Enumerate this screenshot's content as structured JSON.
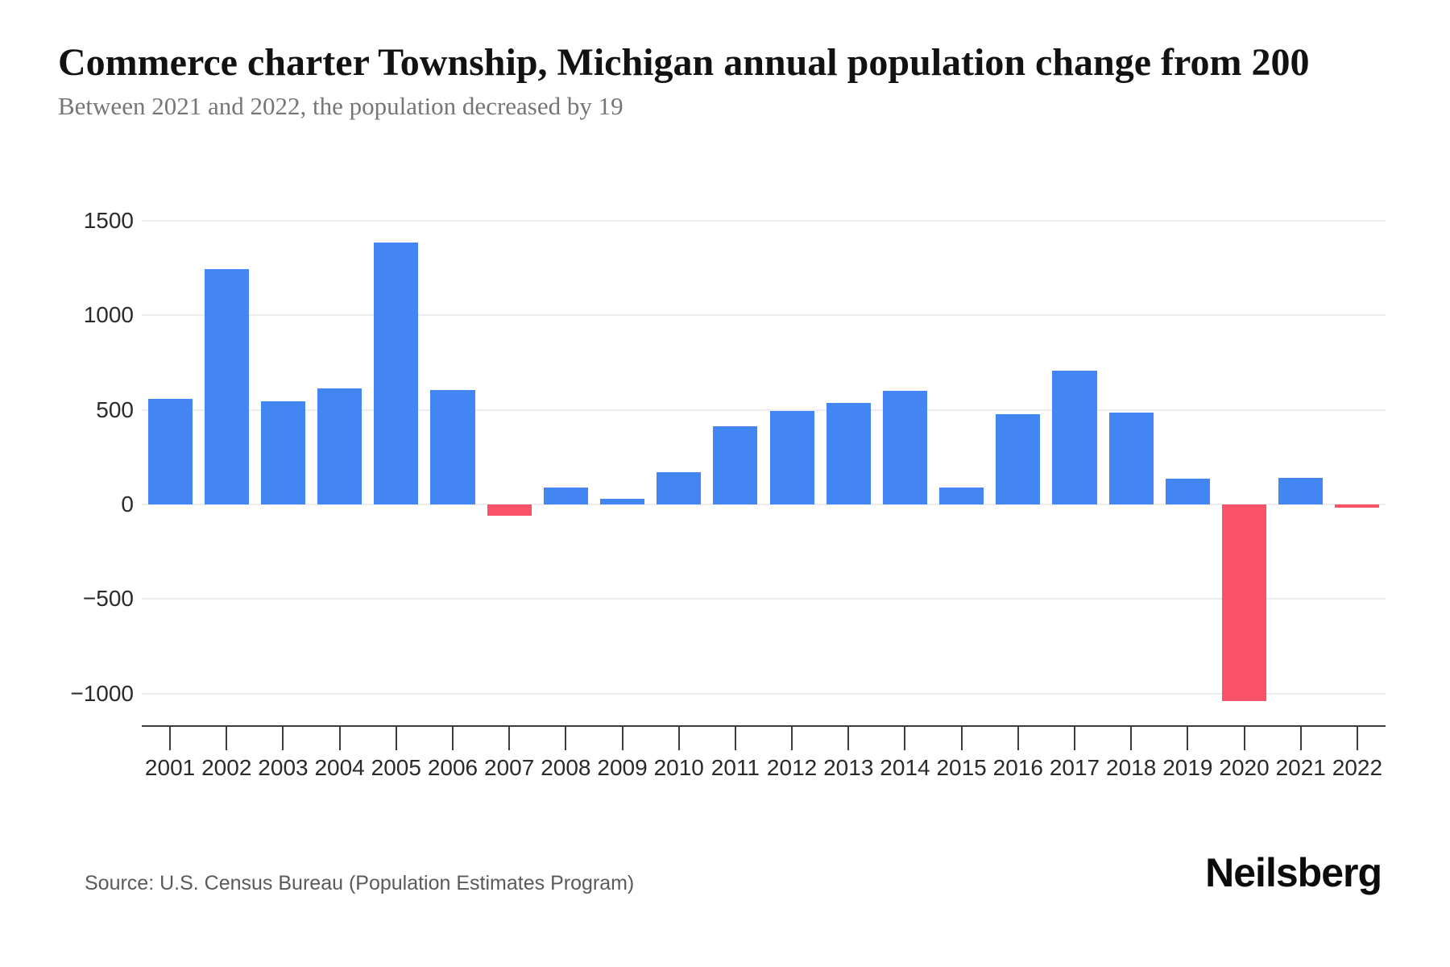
{
  "page": {
    "title": "Commerce charter Township, Michigan annual population change from 200",
    "subtitle": "Between 2021 and 2022, the population decreased by 19",
    "source": "Source: U.S. Census Bureau (Population Estimates Program)",
    "brand": "Neilsberg"
  },
  "chart_data": {
    "type": "bar",
    "title": "Commerce charter Township, Michigan annual population change from 200",
    "subtitle": "Between 2021 and 2022, the population decreased by 19",
    "categories": [
      "2001",
      "2002",
      "2003",
      "2004",
      "2005",
      "2006",
      "2007",
      "2008",
      "2009",
      "2010",
      "2011",
      "2012",
      "2013",
      "2014",
      "2015",
      "2016",
      "2017",
      "2018",
      "2019",
      "2020",
      "2021",
      "2022"
    ],
    "values": [
      560,
      1245,
      545,
      615,
      1385,
      605,
      -60,
      90,
      30,
      170,
      415,
      495,
      535,
      600,
      90,
      475,
      705,
      485,
      135,
      -1040,
      140,
      -19
    ],
    "xlabel": "",
    "ylabel": "",
    "yticks": [
      1500,
      1000,
      500,
      0,
      -500,
      -1000
    ],
    "ylim": [
      -1170,
      1690
    ],
    "grid": true,
    "legend": false,
    "colors": {
      "positive": "#4385f3",
      "negative": "#fa5269",
      "gridline": "#ececec",
      "axis": "#3c3c3c"
    }
  }
}
